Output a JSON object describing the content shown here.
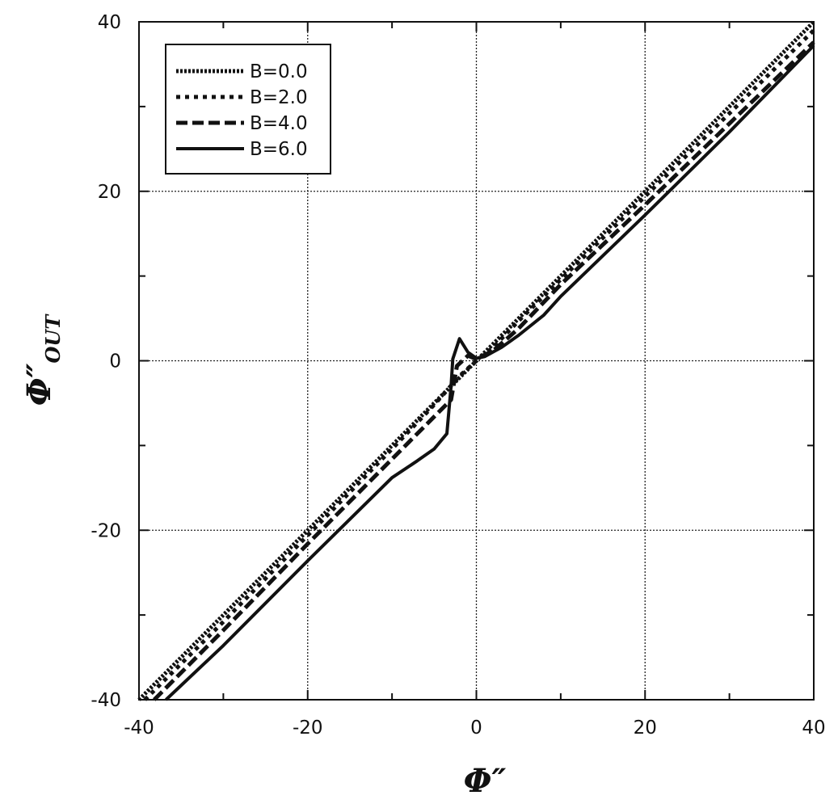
{
  "chart_data": {
    "type": "line",
    "xlabel": "Φ″",
    "ylabel_main": "Φ″",
    "ylabel_sub": "OUT",
    "xlim": [
      -40,
      40
    ],
    "ylim": [
      -40,
      40
    ],
    "xticks": [
      -40,
      -20,
      0,
      20,
      40
    ],
    "yticks": [
      -40,
      -20,
      0,
      20,
      40
    ],
    "xtick_labels": [
      "-40",
      "-20",
      "0",
      "20",
      "40"
    ],
    "ytick_labels": [
      "-40",
      "-20",
      "0",
      "20",
      "40"
    ],
    "grid": true,
    "legend_position": "top-left",
    "series": [
      {
        "name": "B=0.0",
        "style": "dotted-dense",
        "points": [
          [
            -40,
            -40
          ],
          [
            -30,
            -30
          ],
          [
            -20,
            -20
          ],
          [
            -10,
            -10
          ],
          [
            -5,
            -5
          ],
          [
            -2,
            -2
          ],
          [
            0,
            0
          ],
          [
            2,
            2
          ],
          [
            5,
            5
          ],
          [
            10,
            10
          ],
          [
            20,
            20
          ],
          [
            30,
            30
          ],
          [
            40,
            40
          ]
        ]
      },
      {
        "name": "B=2.0",
        "style": "dotted",
        "points": [
          [
            -39.3,
            -40
          ],
          [
            -30,
            -30.8
          ],
          [
            -20,
            -20.6
          ],
          [
            -10,
            -10.4
          ],
          [
            -5,
            -5.2
          ],
          [
            -2,
            -1.8
          ],
          [
            0,
            0
          ],
          [
            2,
            1.6
          ],
          [
            5,
            4.7
          ],
          [
            10,
            9.6
          ],
          [
            20,
            19.4
          ],
          [
            30,
            29.2
          ],
          [
            40,
            39
          ]
        ]
      },
      {
        "name": "B=4.0",
        "style": "dashed",
        "points": [
          [
            -38.2,
            -40
          ],
          [
            -30,
            -31.8
          ],
          [
            -20,
            -21.6
          ],
          [
            -10,
            -11.6
          ],
          [
            -5,
            -6.6
          ],
          [
            -3,
            -4.6
          ],
          [
            -2.3,
            -0.6
          ],
          [
            -1,
            0.6
          ],
          [
            0,
            0.2
          ],
          [
            2,
            1.2
          ],
          [
            5,
            3.8
          ],
          [
            10,
            9.0
          ],
          [
            20,
            18.4
          ],
          [
            30,
            28.0
          ],
          [
            40,
            37.6
          ]
        ]
      },
      {
        "name": "B=6.0",
        "style": "solid",
        "points": [
          [
            -36.8,
            -40
          ],
          [
            -30,
            -33.6
          ],
          [
            -20,
            -23.6
          ],
          [
            -10,
            -13.8
          ],
          [
            -7,
            -11.8
          ],
          [
            -5,
            -10.4
          ],
          [
            -3.5,
            -8.6
          ],
          [
            -3,
            -3.0
          ],
          [
            -2.8,
            0.2
          ],
          [
            -2,
            2.6
          ],
          [
            -1,
            1.0
          ],
          [
            0,
            0.3
          ],
          [
            1,
            0.5
          ],
          [
            3,
            1.6
          ],
          [
            5,
            3.0
          ],
          [
            8,
            5.4
          ],
          [
            10,
            7.6
          ],
          [
            20,
            17.2
          ],
          [
            30,
            27.0
          ],
          [
            40,
            37.2
          ]
        ]
      }
    ]
  }
}
